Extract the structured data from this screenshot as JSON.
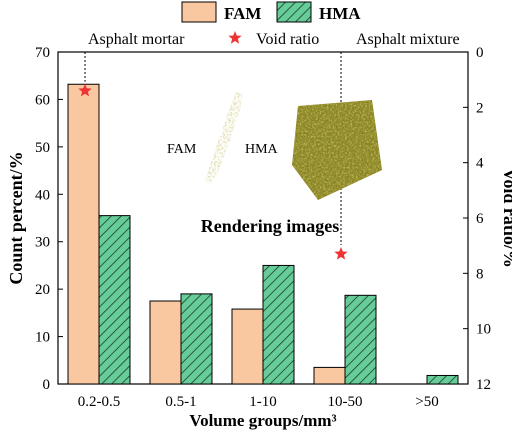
{
  "chart_data": {
    "type": "bar",
    "categories": [
      "0.2-0.5",
      "0.5-1",
      "1-10",
      "10-50",
      ">50"
    ],
    "series": [
      {
        "name": "FAM",
        "values": [
          63.2,
          17.5,
          15.8,
          3.5,
          0
        ],
        "color": "#f9c8a0",
        "pattern": "solid"
      },
      {
        "name": "HMA",
        "values": [
          35.5,
          19.0,
          25.0,
          18.7,
          1.8
        ],
        "color": "#66cc99",
        "pattern": "hatched"
      }
    ],
    "void_ratio": {
      "name": "Void ratio",
      "color": "#ee3333",
      "marker": "star",
      "points": [
        {
          "label": "Asphalt mortar",
          "category_index": 1.0,
          "value": 1.4
        },
        {
          "label": "Asphalt mixture",
          "category_index": 4.0,
          "value": 7.3
        }
      ]
    },
    "xlabel": "Volume groups/mm³",
    "ylabel": "Count percent/%",
    "y2label": "Void ratio/%",
    "ylim": [
      0,
      70
    ],
    "yticks": [
      0,
      10,
      20,
      30,
      40,
      50,
      60,
      70
    ],
    "y2lim": [
      0,
      12
    ],
    "y2_inverted": true,
    "y2ticks": [
      0,
      2,
      4,
      6,
      8,
      10,
      12
    ],
    "legend_position": "top-center",
    "annotations": {
      "asphalt_mortar": "Asphalt mortar",
      "asphalt_mixture": "Asphalt mixture",
      "void_ratio_legend": "Void ratio",
      "fam_image_label": "FAM",
      "hma_image_label": "HMA",
      "rendering_title": "Rendering images"
    }
  }
}
